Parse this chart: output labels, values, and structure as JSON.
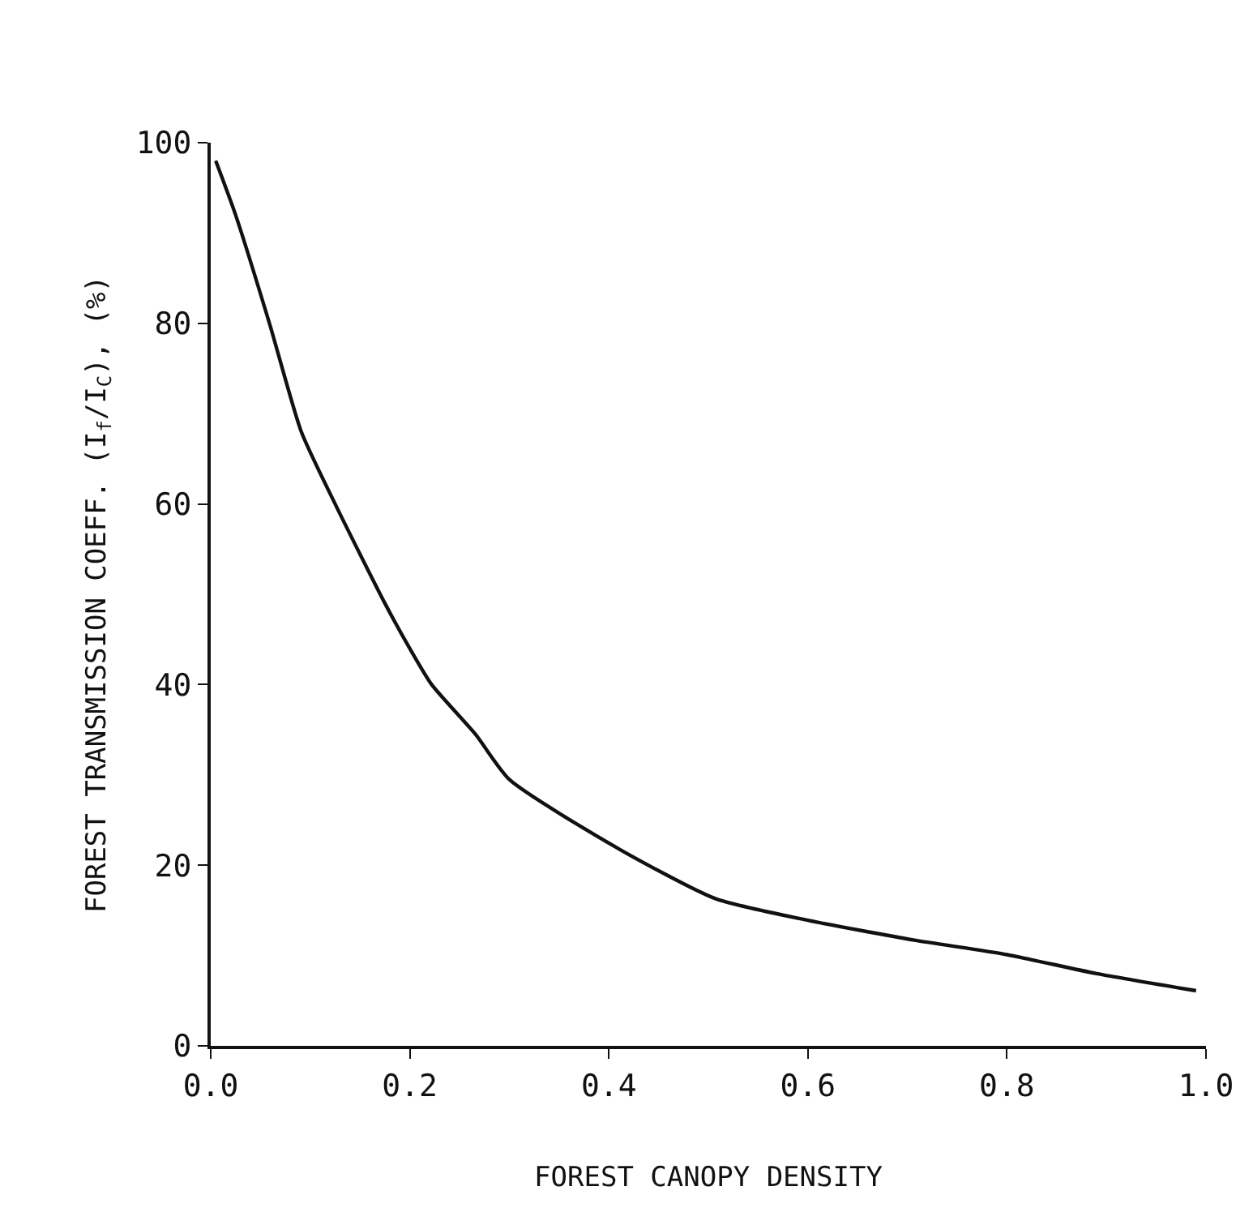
{
  "chart_data": {
    "type": "line",
    "xlabel": "FOREST CANOPY DENSITY",
    "ylabel": "FOREST TRANSMISSION COEFF. (I$_{f}$/I$_{C}$), (%)",
    "series": [
      {
        "color": "#111111",
        "x": [
          0.005,
          0.025,
          0.059,
          0.091,
          0.125,
          0.175,
          0.2,
          0.222,
          0.266,
          0.3,
          0.407,
          0.507,
          0.6,
          0.707,
          0.8,
          0.89,
          0.99
        ],
        "values": [
          98,
          92,
          80,
          68,
          60,
          49,
          44,
          40,
          34.5,
          29.5,
          22,
          16.3,
          13.9,
          11.7,
          10.1,
          8,
          6.1
        ]
      }
    ],
    "xlim": [
      0,
      1.0
    ],
    "xticks": [
      {
        "value": 0,
        "label": "0.0"
      },
      0.2,
      0.4,
      0.6,
      0.8,
      {
        "value": 1.0,
        "label": "1.0"
      }
    ],
    "ylim": [
      0,
      100
    ],
    "yticks": [
      0,
      20,
      40,
      60,
      80,
      100
    ],
    "marker": "none",
    "line_style": "solid"
  }
}
